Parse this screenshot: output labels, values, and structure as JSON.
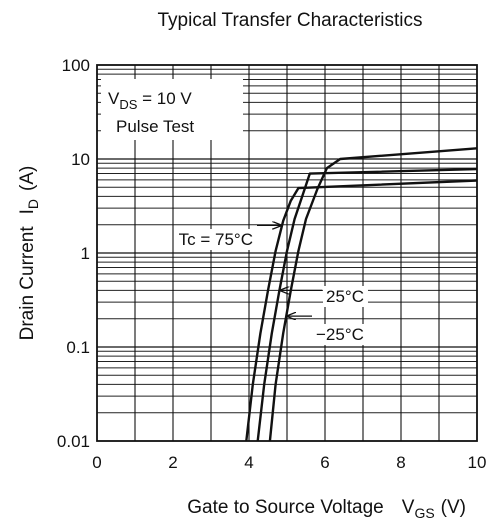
{
  "chart_data": {
    "type": "line",
    "title": "Typical Transfer Characteristics",
    "xlabel": {
      "text": "Gate to Source Voltage",
      "symbol": "V",
      "sub": "GS",
      "unit": "(V)"
    },
    "ylabel": {
      "text": "Drain Current",
      "symbol": "I",
      "sub": "D",
      "unit": "(A)"
    },
    "xlim": [
      0,
      10
    ],
    "ylim": [
      0.01,
      100
    ],
    "yscale": "log",
    "grid": true,
    "x_ticks": [
      "0",
      "2",
      "4",
      "6",
      "8",
      "10"
    ],
    "y_ticks": [
      "0.01",
      "0.1",
      "1",
      "10",
      "100"
    ],
    "conditions": [
      {
        "symbol": "V",
        "sub": "DS",
        "rest": " = 10 V"
      },
      {
        "text": "Pulse Test"
      }
    ],
    "series": [
      {
        "name": "Tc = 75°C",
        "x": [
          3.93,
          4.1,
          4.3,
          4.5,
          4.7,
          4.9,
          5.1,
          5.3,
          10
        ],
        "y": [
          0.01,
          0.04,
          0.14,
          0.4,
          1.05,
          2.2,
          3.6,
          4.9,
          5.9
        ]
      },
      {
        "name": "25°C",
        "x": [
          4.23,
          4.4,
          4.6,
          4.8,
          5.0,
          5.2,
          5.4,
          5.6,
          10
        ],
        "y": [
          0.01,
          0.04,
          0.14,
          0.4,
          1.05,
          2.3,
          4.0,
          7.0,
          7.8
        ]
      },
      {
        "name": "−25°C",
        "x": [
          4.55,
          4.7,
          4.9,
          5.1,
          5.3,
          5.5,
          5.8,
          6.05,
          6.4,
          10
        ],
        "y": [
          0.01,
          0.04,
          0.14,
          0.4,
          1.05,
          2.3,
          4.8,
          8.0,
          10.0,
          13.0
        ]
      }
    ],
    "annotations": [
      {
        "label": "Tc = 75°C",
        "series": 0,
        "arrow_at_x": 4.87
      },
      {
        "label": "25°C",
        "series": 1,
        "arrow_at_x": 4.8
      },
      {
        "label": "−25°C",
        "series": 2,
        "arrow_at_x": 4.98
      }
    ]
  }
}
